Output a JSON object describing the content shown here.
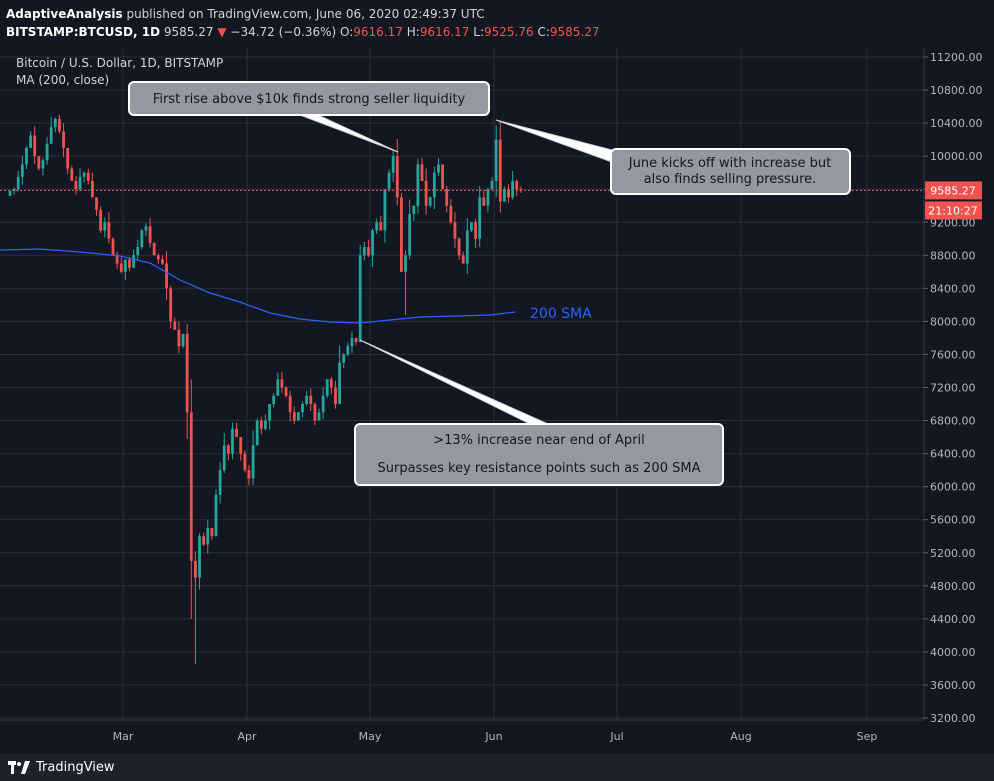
{
  "header": {
    "author": "AdaptiveAnalysis",
    "published": " published on TradingView.com, June 06, 2020 02:49:37 UTC",
    "symbol": "BITSTAMP:BTCUSD, 1D",
    "last": "9585.27",
    "arrow": "▼",
    "change": "−34.72 (−0.36%)",
    "o_label": "O:",
    "o": "9616.17",
    "h_label": "H:",
    "h": "9616.17",
    "l_label": "L:",
    "l": "9525.76",
    "c_label": "C:",
    "c": "9585.27"
  },
  "legend": {
    "title": "Bitcoin / U.S. Dollar, 1D, BITSTAMP",
    "indicator": "MA (200, close)"
  },
  "price_badge": {
    "price": "9585.27",
    "countdown": "21:10:27"
  },
  "annotations": {
    "seller": "First rise above $10k finds strong seller liquidity",
    "june_1": "June kicks off with increase but",
    "june_2": "also finds selling pressure.",
    "april_1": ">13% increase near end of April",
    "april_2": "Surpasses key resistance points such as 200 SMA",
    "sma": "200 SMA"
  },
  "footer": {
    "brand": "TradingView"
  },
  "colors": {
    "up": "#26a69a",
    "down": "#ef5350",
    "sma": "#2962ff",
    "bg": "#131722",
    "grid": "#2a2e39",
    "price_line": "#ef5350"
  },
  "chart_data": {
    "type": "candlestick",
    "y_ticks": [
      "11200.00",
      "10800.00",
      "10400.00",
      "10000.00",
      "9600.00",
      "9200.00",
      "8800.00",
      "8400.00",
      "8000.00",
      "7600.00",
      "7200.00",
      "6800.00",
      "6400.00",
      "6000.00",
      "5600.00",
      "5200.00",
      "4800.00",
      "4400.00",
      "4000.00",
      "3600.00",
      "3200.00"
    ],
    "x_ticks": [
      "Mar",
      "Apr",
      "May",
      "Jun",
      "Jul",
      "Aug",
      "Sep"
    ],
    "ylim": [
      3200,
      11400
    ],
    "last_price": 9585.27,
    "close_path": [
      9580,
      9600,
      9750,
      9900,
      10100,
      10250,
      10000,
      9850,
      9950,
      10150,
      10350,
      10450,
      10300,
      10100,
      9850,
      9700,
      9600,
      9750,
      9800,
      9700,
      9500,
      9350,
      9100,
      9200,
      9000,
      8800,
      8700,
      8600,
      8750,
      8650,
      8800,
      8900,
      9100,
      9150,
      8950,
      8800,
      8750,
      8700,
      8400,
      8000,
      7900,
      7700,
      7850,
      6900,
      5100,
      4900,
      5400,
      5300,
      5500,
      5400,
      5900,
      6200,
      6500,
      6400,
      6700,
      6600,
      6400,
      6200,
      6100,
      6500,
      6800,
      6700,
      6800,
      7000,
      7100,
      7300,
      7200,
      7100,
      6900,
      6800,
      6900,
      7000,
      7100,
      7000,
      6800,
      6900,
      7100,
      7300,
      7200,
      7000,
      7500,
      7600,
      7700,
      7800,
      7750,
      8800,
      8900,
      8800,
      9100,
      9200,
      9100,
      9600,
      9800,
      10000,
      9500,
      8600,
      8800,
      9300,
      9400,
      9900,
      9700,
      9400,
      9500,
      9800,
      9900,
      9600,
      9400,
      9200,
      9000,
      8800,
      8700,
      9100,
      9200,
      9000,
      9500,
      9400,
      9600,
      9700,
      10200,
      9450,
      9600,
      9500,
      9700,
      9600,
      9585
    ]
  }
}
